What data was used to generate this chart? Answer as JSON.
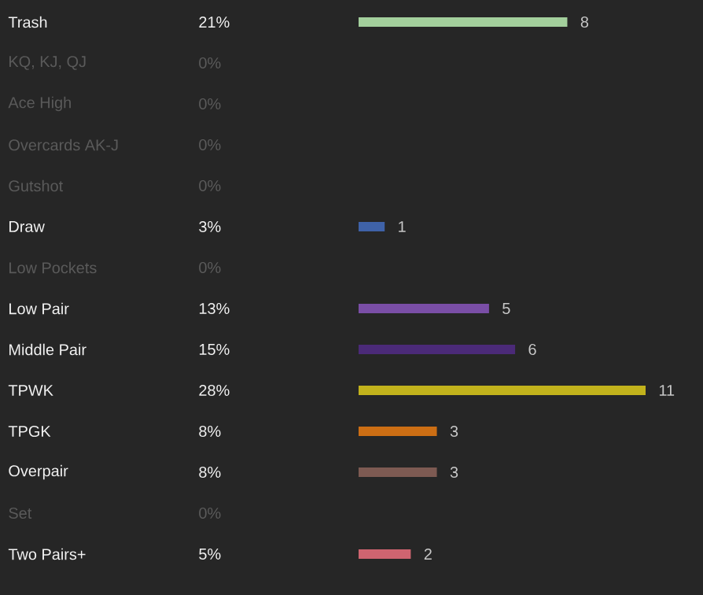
{
  "chart_data": {
    "type": "bar",
    "orientation": "horizontal",
    "categories": [
      "Trash",
      "KQ, KJ, QJ",
      "Ace High",
      "Overcards AK-J",
      "Gutshot",
      "Draw",
      "Low Pockets",
      "Low Pair",
      "Middle Pair",
      "TPWK",
      "TPGK",
      "Overpair",
      "Set",
      "Two Pairs+"
    ],
    "values": [
      8,
      0,
      0,
      0,
      0,
      1,
      0,
      5,
      6,
      11,
      3,
      3,
      0,
      2
    ],
    "colors": [
      "#a3cf9c",
      null,
      null,
      null,
      null,
      "#3f62a8",
      null,
      "#7a4ea6",
      "#4b2a78",
      "#c2b21c",
      "#cc6e14",
      "#7d5a52",
      null,
      "#cf6470"
    ],
    "value_labels": [
      "8",
      null,
      null,
      null,
      null,
      "1",
      null,
      "5",
      "6",
      "11",
      "3",
      "3",
      null,
      "2"
    ],
    "annotations": [
      "21%",
      "0%",
      "0%",
      "0%",
      "0%",
      "3%",
      "0%",
      "13%",
      "15%",
      "28%",
      "8%",
      "8%",
      "0%",
      "5%"
    ]
  }
}
